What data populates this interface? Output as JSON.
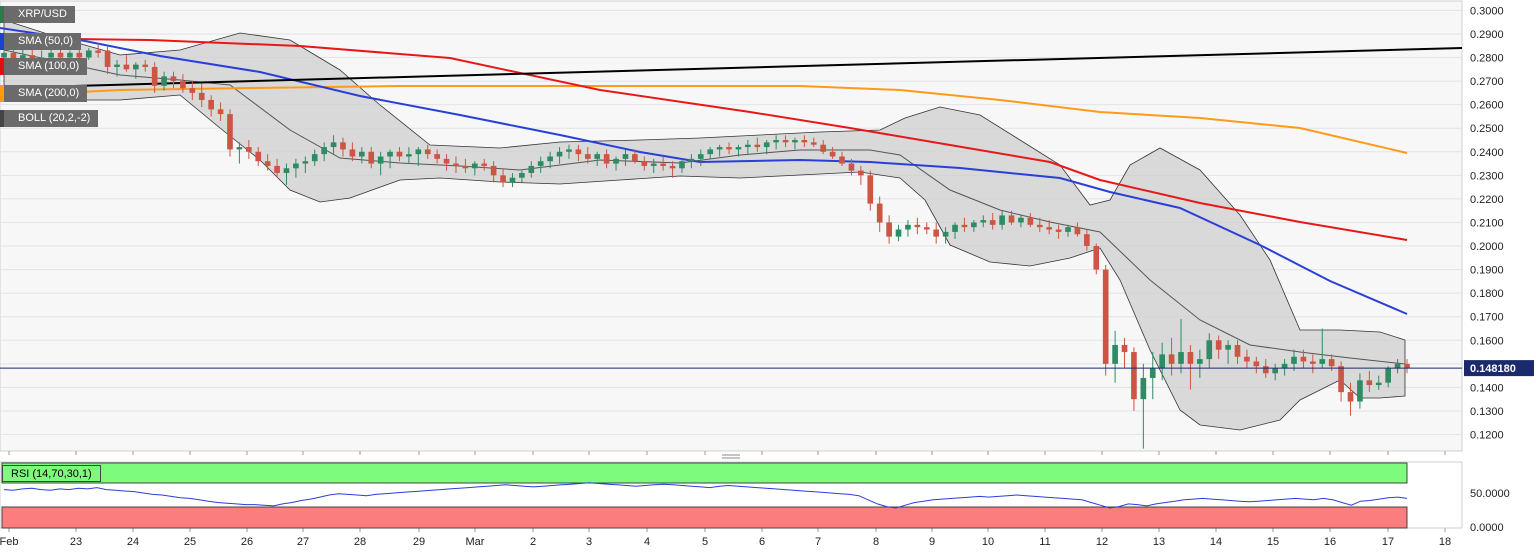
{
  "chart_data": {
    "type": "candlestick",
    "symbol": "XRP/USD",
    "ylim": [
      0.113,
      0.304
    ],
    "y_ticks": [
      "0.3000",
      "0.2900",
      "0.2800",
      "0.2700",
      "0.2600",
      "0.2500",
      "0.2400",
      "0.2300",
      "0.2200",
      "0.2100",
      "0.2000",
      "0.1900",
      "0.1800",
      "0.1700",
      "0.1600",
      "0.1500",
      "0.1400",
      "0.1300",
      "0.1200"
    ],
    "x_ticks": [
      "Feb",
      "23",
      "24",
      "25",
      "26",
      "27",
      "28",
      "29",
      "Mar",
      "2",
      "3",
      "4",
      "5",
      "6",
      "7",
      "8",
      "9",
      "10",
      "11",
      "12",
      "13",
      "14",
      "15",
      "16",
      "17",
      "18"
    ],
    "last_price": "0.148180",
    "grid": true,
    "legend": [
      {
        "label": "XRP/USD",
        "color": "#2c7a4b"
      },
      {
        "label": "SMA (50,0)",
        "color": "#1f3fcf"
      },
      {
        "label": "SMA (100,0)",
        "color": "#e01010"
      },
      {
        "label": "SMA (200,0)",
        "color": "#ff9a10"
      },
      {
        "label": "BOLL (20,2,-2)",
        "color": "#444444"
      }
    ],
    "colors": {
      "up": "#2e8b64",
      "down": "#cc5544",
      "sma50": "#2a3fd8",
      "sma100": "#e81818",
      "sma200": "#ff9a1a",
      "trend": "#000000",
      "band_fill": "#cfcfcf",
      "price_line": "#1a2a6a"
    },
    "candles": [
      {
        "o": 0.28,
        "h": 0.286,
        "l": 0.276,
        "c": 0.282
      },
      {
        "o": 0.282,
        "h": 0.289,
        "l": 0.278,
        "c": 0.278
      },
      {
        "o": 0.278,
        "h": 0.284,
        "l": 0.276,
        "c": 0.281
      },
      {
        "o": 0.281,
        "h": 0.285,
        "l": 0.277,
        "c": 0.279
      },
      {
        "o": 0.279,
        "h": 0.283,
        "l": 0.277,
        "c": 0.28
      },
      {
        "o": 0.28,
        "h": 0.286,
        "l": 0.278,
        "c": 0.282
      },
      {
        "o": 0.282,
        "h": 0.286,
        "l": 0.279,
        "c": 0.28
      },
      {
        "o": 0.28,
        "h": 0.283,
        "l": 0.278,
        "c": 0.282
      },
      {
        "o": 0.282,
        "h": 0.285,
        "l": 0.278,
        "c": 0.28
      },
      {
        "o": 0.28,
        "h": 0.284,
        "l": 0.279,
        "c": 0.283
      },
      {
        "o": 0.283,
        "h": 0.286,
        "l": 0.28,
        "c": 0.282
      },
      {
        "o": 0.283,
        "h": 0.285,
        "l": 0.273,
        "c": 0.276
      },
      {
        "o": 0.276,
        "h": 0.279,
        "l": 0.272,
        "c": 0.277
      },
      {
        "o": 0.277,
        "h": 0.281,
        "l": 0.274,
        "c": 0.275
      },
      {
        "o": 0.275,
        "h": 0.278,
        "l": 0.271,
        "c": 0.277
      },
      {
        "o": 0.277,
        "h": 0.279,
        "l": 0.274,
        "c": 0.276
      },
      {
        "o": 0.276,
        "h": 0.278,
        "l": 0.265,
        "c": 0.268
      },
      {
        "o": 0.268,
        "h": 0.274,
        "l": 0.266,
        "c": 0.272
      },
      {
        "o": 0.272,
        "h": 0.274,
        "l": 0.267,
        "c": 0.27
      },
      {
        "o": 0.27,
        "h": 0.273,
        "l": 0.265,
        "c": 0.267
      },
      {
        "o": 0.267,
        "h": 0.27,
        "l": 0.262,
        "c": 0.265
      },
      {
        "o": 0.265,
        "h": 0.269,
        "l": 0.259,
        "c": 0.262
      },
      {
        "o": 0.262,
        "h": 0.264,
        "l": 0.255,
        "c": 0.258
      },
      {
        "o": 0.258,
        "h": 0.261,
        "l": 0.253,
        "c": 0.256
      },
      {
        "o": 0.256,
        "h": 0.258,
        "l": 0.238,
        "c": 0.241
      },
      {
        "o": 0.241,
        "h": 0.244,
        "l": 0.235,
        "c": 0.242
      },
      {
        "o": 0.242,
        "h": 0.245,
        "l": 0.237,
        "c": 0.24
      },
      {
        "o": 0.24,
        "h": 0.242,
        "l": 0.234,
        "c": 0.236
      },
      {
        "o": 0.236,
        "h": 0.239,
        "l": 0.232,
        "c": 0.234
      },
      {
        "o": 0.234,
        "h": 0.237,
        "l": 0.229,
        "c": 0.231
      },
      {
        "o": 0.231,
        "h": 0.235,
        "l": 0.226,
        "c": 0.233
      },
      {
        "o": 0.233,
        "h": 0.237,
        "l": 0.229,
        "c": 0.235
      },
      {
        "o": 0.235,
        "h": 0.238,
        "l": 0.231,
        "c": 0.236
      },
      {
        "o": 0.236,
        "h": 0.241,
        "l": 0.234,
        "c": 0.239
      },
      {
        "o": 0.239,
        "h": 0.244,
        "l": 0.236,
        "c": 0.242
      },
      {
        "o": 0.242,
        "h": 0.247,
        "l": 0.239,
        "c": 0.244
      },
      {
        "o": 0.244,
        "h": 0.246,
        "l": 0.238,
        "c": 0.241
      },
      {
        "o": 0.241,
        "h": 0.244,
        "l": 0.236,
        "c": 0.238
      },
      {
        "o": 0.238,
        "h": 0.242,
        "l": 0.235,
        "c": 0.24
      },
      {
        "o": 0.24,
        "h": 0.242,
        "l": 0.233,
        "c": 0.235
      },
      {
        "o": 0.235,
        "h": 0.24,
        "l": 0.23,
        "c": 0.238
      },
      {
        "o": 0.238,
        "h": 0.241,
        "l": 0.233,
        "c": 0.24
      },
      {
        "o": 0.24,
        "h": 0.242,
        "l": 0.236,
        "c": 0.238
      },
      {
        "o": 0.238,
        "h": 0.242,
        "l": 0.235,
        "c": 0.239
      },
      {
        "o": 0.239,
        "h": 0.242,
        "l": 0.234,
        "c": 0.241
      },
      {
        "o": 0.241,
        "h": 0.243,
        "l": 0.237,
        "c": 0.239
      },
      {
        "o": 0.239,
        "h": 0.241,
        "l": 0.235,
        "c": 0.237
      },
      {
        "o": 0.237,
        "h": 0.239,
        "l": 0.232,
        "c": 0.235
      },
      {
        "o": 0.235,
        "h": 0.238,
        "l": 0.231,
        "c": 0.234
      },
      {
        "o": 0.234,
        "h": 0.237,
        "l": 0.231,
        "c": 0.233
      },
      {
        "o": 0.233,
        "h": 0.236,
        "l": 0.23,
        "c": 0.235
      },
      {
        "o": 0.235,
        "h": 0.237,
        "l": 0.232,
        "c": 0.234
      },
      {
        "o": 0.234,
        "h": 0.236,
        "l": 0.227,
        "c": 0.23
      },
      {
        "o": 0.23,
        "h": 0.233,
        "l": 0.225,
        "c": 0.227
      },
      {
        "o": 0.227,
        "h": 0.231,
        "l": 0.225,
        "c": 0.229
      },
      {
        "o": 0.229,
        "h": 0.232,
        "l": 0.227,
        "c": 0.231
      },
      {
        "o": 0.231,
        "h": 0.236,
        "l": 0.229,
        "c": 0.234
      },
      {
        "o": 0.234,
        "h": 0.238,
        "l": 0.231,
        "c": 0.236
      },
      {
        "o": 0.236,
        "h": 0.24,
        "l": 0.233,
        "c": 0.238
      },
      {
        "o": 0.238,
        "h": 0.242,
        "l": 0.235,
        "c": 0.24
      },
      {
        "o": 0.24,
        "h": 0.243,
        "l": 0.237,
        "c": 0.241
      },
      {
        "o": 0.241,
        "h": 0.243,
        "l": 0.236,
        "c": 0.239
      },
      {
        "o": 0.239,
        "h": 0.242,
        "l": 0.235,
        "c": 0.237
      },
      {
        "o": 0.237,
        "h": 0.24,
        "l": 0.234,
        "c": 0.239
      },
      {
        "o": 0.239,
        "h": 0.241,
        "l": 0.233,
        "c": 0.235
      },
      {
        "o": 0.235,
        "h": 0.238,
        "l": 0.232,
        "c": 0.237
      },
      {
        "o": 0.237,
        "h": 0.241,
        "l": 0.234,
        "c": 0.239
      },
      {
        "o": 0.239,
        "h": 0.241,
        "l": 0.235,
        "c": 0.236
      },
      {
        "o": 0.236,
        "h": 0.238,
        "l": 0.232,
        "c": 0.234
      },
      {
        "o": 0.234,
        "h": 0.237,
        "l": 0.231,
        "c": 0.235
      },
      {
        "o": 0.235,
        "h": 0.238,
        "l": 0.232,
        "c": 0.234
      },
      {
        "o": 0.234,
        "h": 0.236,
        "l": 0.229,
        "c": 0.233
      },
      {
        "o": 0.233,
        "h": 0.237,
        "l": 0.231,
        "c": 0.236
      },
      {
        "o": 0.236,
        "h": 0.239,
        "l": 0.233,
        "c": 0.237
      },
      {
        "o": 0.237,
        "h": 0.241,
        "l": 0.234,
        "c": 0.239
      },
      {
        "o": 0.239,
        "h": 0.242,
        "l": 0.237,
        "c": 0.241
      },
      {
        "o": 0.241,
        "h": 0.243,
        "l": 0.238,
        "c": 0.242
      },
      {
        "o": 0.242,
        "h": 0.244,
        "l": 0.239,
        "c": 0.241
      },
      {
        "o": 0.241,
        "h": 0.243,
        "l": 0.238,
        "c": 0.242
      },
      {
        "o": 0.242,
        "h": 0.245,
        "l": 0.239,
        "c": 0.243
      },
      {
        "o": 0.243,
        "h": 0.246,
        "l": 0.24,
        "c": 0.242
      },
      {
        "o": 0.242,
        "h": 0.245,
        "l": 0.239,
        "c": 0.244
      },
      {
        "o": 0.244,
        "h": 0.247,
        "l": 0.241,
        "c": 0.245
      },
      {
        "o": 0.245,
        "h": 0.247,
        "l": 0.242,
        "c": 0.244
      },
      {
        "o": 0.244,
        "h": 0.246,
        "l": 0.241,
        "c": 0.245
      },
      {
        "o": 0.245,
        "h": 0.247,
        "l": 0.242,
        "c": 0.244
      },
      {
        "o": 0.244,
        "h": 0.246,
        "l": 0.242,
        "c": 0.243
      },
      {
        "o": 0.243,
        "h": 0.245,
        "l": 0.239,
        "c": 0.24
      },
      {
        "o": 0.24,
        "h": 0.242,
        "l": 0.237,
        "c": 0.238
      },
      {
        "o": 0.238,
        "h": 0.24,
        "l": 0.234,
        "c": 0.235
      },
      {
        "o": 0.235,
        "h": 0.237,
        "l": 0.23,
        "c": 0.232
      },
      {
        "o": 0.232,
        "h": 0.234,
        "l": 0.226,
        "c": 0.23
      },
      {
        "o": 0.23,
        "h": 0.232,
        "l": 0.215,
        "c": 0.218
      },
      {
        "o": 0.218,
        "h": 0.221,
        "l": 0.206,
        "c": 0.21
      },
      {
        "o": 0.21,
        "h": 0.213,
        "l": 0.201,
        "c": 0.204
      },
      {
        "o": 0.204,
        "h": 0.209,
        "l": 0.202,
        "c": 0.207
      },
      {
        "o": 0.207,
        "h": 0.211,
        "l": 0.204,
        "c": 0.209
      },
      {
        "o": 0.209,
        "h": 0.212,
        "l": 0.205,
        "c": 0.208
      },
      {
        "o": 0.208,
        "h": 0.21,
        "l": 0.205,
        "c": 0.207
      },
      {
        "o": 0.207,
        "h": 0.21,
        "l": 0.201,
        "c": 0.204
      },
      {
        "o": 0.204,
        "h": 0.208,
        "l": 0.201,
        "c": 0.206
      },
      {
        "o": 0.206,
        "h": 0.21,
        "l": 0.203,
        "c": 0.209
      },
      {
        "o": 0.209,
        "h": 0.212,
        "l": 0.206,
        "c": 0.208
      },
      {
        "o": 0.208,
        "h": 0.211,
        "l": 0.206,
        "c": 0.21
      },
      {
        "o": 0.21,
        "h": 0.213,
        "l": 0.208,
        "c": 0.211
      },
      {
        "o": 0.211,
        "h": 0.214,
        "l": 0.207,
        "c": 0.209
      },
      {
        "o": 0.209,
        "h": 0.215,
        "l": 0.207,
        "c": 0.213
      },
      {
        "o": 0.213,
        "h": 0.215,
        "l": 0.209,
        "c": 0.21
      },
      {
        "o": 0.21,
        "h": 0.213,
        "l": 0.208,
        "c": 0.212
      },
      {
        "o": 0.212,
        "h": 0.214,
        "l": 0.208,
        "c": 0.209
      },
      {
        "o": 0.209,
        "h": 0.212,
        "l": 0.206,
        "c": 0.208
      },
      {
        "o": 0.208,
        "h": 0.211,
        "l": 0.205,
        "c": 0.207
      },
      {
        "o": 0.207,
        "h": 0.209,
        "l": 0.203,
        "c": 0.206
      },
      {
        "o": 0.206,
        "h": 0.209,
        "l": 0.204,
        "c": 0.208
      },
      {
        "o": 0.208,
        "h": 0.21,
        "l": 0.204,
        "c": 0.205
      },
      {
        "o": 0.205,
        "h": 0.207,
        "l": 0.198,
        "c": 0.2
      },
      {
        "o": 0.2,
        "h": 0.201,
        "l": 0.188,
        "c": 0.19
      },
      {
        "o": 0.19,
        "h": 0.192,
        "l": 0.145,
        "c": 0.15
      },
      {
        "o": 0.15,
        "h": 0.164,
        "l": 0.142,
        "c": 0.158
      },
      {
        "o": 0.158,
        "h": 0.161,
        "l": 0.148,
        "c": 0.155
      },
      {
        "o": 0.155,
        "h": 0.157,
        "l": 0.13,
        "c": 0.135
      },
      {
        "o": 0.135,
        "h": 0.15,
        "l": 0.114,
        "c": 0.144
      },
      {
        "o": 0.144,
        "h": 0.155,
        "l": 0.135,
        "c": 0.148
      },
      {
        "o": 0.148,
        "h": 0.159,
        "l": 0.143,
        "c": 0.154
      },
      {
        "o": 0.154,
        "h": 0.161,
        "l": 0.145,
        "c": 0.15
      },
      {
        "o": 0.15,
        "h": 0.169,
        "l": 0.146,
        "c": 0.155
      },
      {
        "o": 0.155,
        "h": 0.158,
        "l": 0.139,
        "c": 0.15
      },
      {
        "o": 0.15,
        "h": 0.156,
        "l": 0.144,
        "c": 0.152
      },
      {
        "o": 0.152,
        "h": 0.163,
        "l": 0.148,
        "c": 0.16
      },
      {
        "o": 0.16,
        "h": 0.162,
        "l": 0.152,
        "c": 0.156
      },
      {
        "o": 0.156,
        "h": 0.16,
        "l": 0.15,
        "c": 0.158
      },
      {
        "o": 0.158,
        "h": 0.16,
        "l": 0.15,
        "c": 0.153
      },
      {
        "o": 0.153,
        "h": 0.156,
        "l": 0.148,
        "c": 0.151
      },
      {
        "o": 0.151,
        "h": 0.153,
        "l": 0.146,
        "c": 0.149
      },
      {
        "o": 0.149,
        "h": 0.152,
        "l": 0.144,
        "c": 0.146
      },
      {
        "o": 0.146,
        "h": 0.15,
        "l": 0.143,
        "c": 0.148
      },
      {
        "o": 0.148,
        "h": 0.152,
        "l": 0.145,
        "c": 0.15
      },
      {
        "o": 0.15,
        "h": 0.156,
        "l": 0.147,
        "c": 0.153
      },
      {
        "o": 0.153,
        "h": 0.156,
        "l": 0.148,
        "c": 0.151
      },
      {
        "o": 0.151,
        "h": 0.154,
        "l": 0.146,
        "c": 0.15
      },
      {
        "o": 0.15,
        "h": 0.165,
        "l": 0.148,
        "c": 0.152
      },
      {
        "o": 0.152,
        "h": 0.154,
        "l": 0.147,
        "c": 0.149
      },
      {
        "o": 0.149,
        "h": 0.151,
        "l": 0.134,
        "c": 0.138
      },
      {
        "o": 0.138,
        "h": 0.142,
        "l": 0.128,
        "c": 0.134
      },
      {
        "o": 0.134,
        "h": 0.146,
        "l": 0.131,
        "c": 0.143
      },
      {
        "o": 0.143,
        "h": 0.147,
        "l": 0.138,
        "c": 0.141
      },
      {
        "o": 0.141,
        "h": 0.145,
        "l": 0.139,
        "c": 0.142
      },
      {
        "o": 0.142,
        "h": 0.149,
        "l": 0.14,
        "c": 0.148
      },
      {
        "o": 0.148,
        "h": 0.152,
        "l": 0.146,
        "c": 0.15
      },
      {
        "o": 0.15,
        "h": 0.152,
        "l": 0.146,
        "c": 0.1482
      }
    ],
    "rsi": {
      "label": "RSI (14,70,30,1)",
      "ticks": [
        "50.0000",
        "0.0000"
      ],
      "values": [
        55,
        54,
        56,
        57,
        55,
        54,
        56,
        55,
        57,
        56,
        58,
        55,
        54,
        53,
        52,
        50,
        48,
        47,
        45,
        43,
        42,
        40,
        38,
        36,
        35,
        34,
        33,
        33,
        32,
        31,
        34,
        36,
        39,
        41,
        44,
        47,
        49,
        48,
        47,
        46,
        48,
        49,
        50,
        51,
        52,
        53,
        54,
        55,
        56,
        57,
        58,
        59,
        60,
        61,
        62,
        61,
        60,
        59,
        60,
        61,
        62,
        63,
        64,
        65,
        64,
        63,
        62,
        61,
        60,
        61,
        62,
        63,
        62,
        61,
        60,
        59,
        58,
        60,
        61,
        60,
        59,
        58,
        57,
        56,
        55,
        54,
        53,
        52,
        51,
        50,
        49,
        48,
        46,
        40,
        34,
        30,
        28,
        32,
        36,
        38,
        40,
        41,
        42,
        43,
        44,
        45,
        44,
        45,
        46,
        47,
        46,
        45,
        44,
        43,
        42,
        41,
        40,
        36,
        32,
        28,
        30,
        34,
        33,
        31,
        34,
        36,
        38,
        40,
        41,
        42,
        41,
        40,
        39,
        38,
        37,
        38,
        39,
        40,
        41,
        42,
        41,
        40,
        42,
        40,
        36,
        32,
        38,
        39,
        41,
        43,
        44,
        42
      ]
    }
  }
}
